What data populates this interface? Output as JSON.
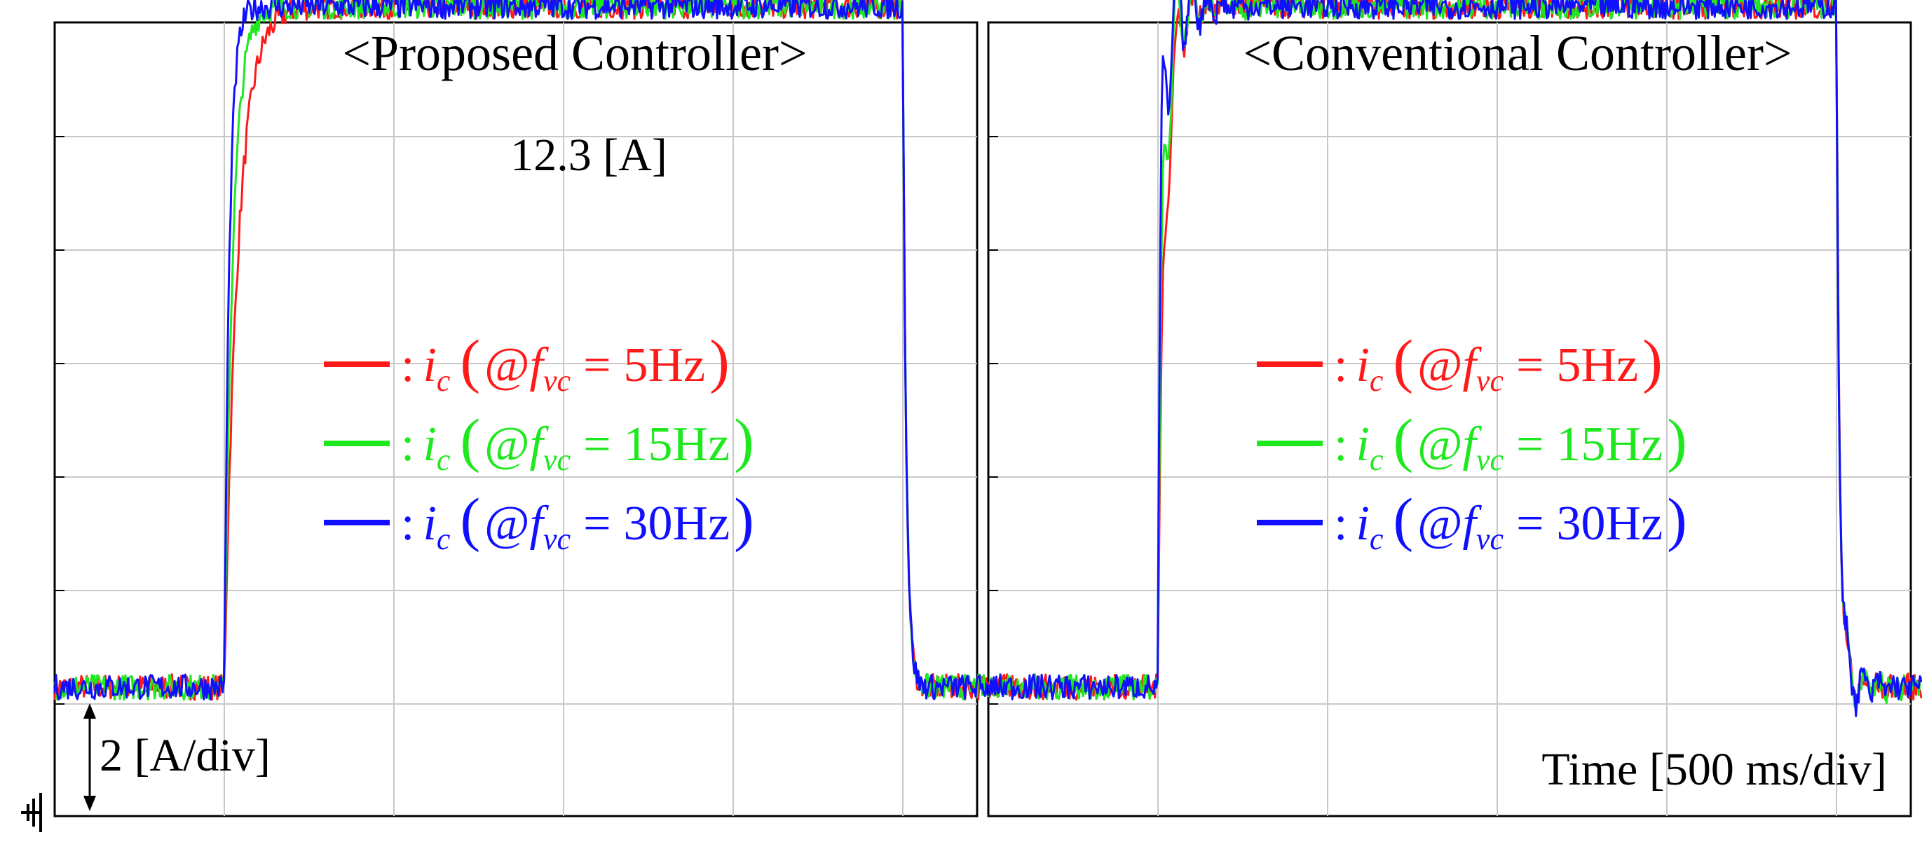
{
  "time_label": "Time [500 ms/div]",
  "scale_label": "2 [A/div]",
  "ground_icon": "ground-symbol-icon",
  "colors": {
    "f5": "#ff1a1a",
    "f15": "#1fe81f",
    "f30": "#1010ff",
    "grid": "#c8c8c8",
    "frame": "#000000"
  },
  "legend": [
    {
      "color": "#ff1a1a",
      "sym": "i",
      "sub": "c",
      "at": "@",
      "f": "f",
      "fsub": "vc",
      "eq": "=",
      "value": "5Hz"
    },
    {
      "color": "#1fe81f",
      "sym": "i",
      "sub": "c",
      "at": "@",
      "f": "f",
      "fsub": "vc",
      "eq": "=",
      "value": "15Hz"
    },
    {
      "color": "#1010ff",
      "sym": "i",
      "sub": "c",
      "at": "@",
      "f": "f",
      "fsub": "vc",
      "eq": "=",
      "value": "30Hz"
    }
  ],
  "chart_data": [
    {
      "type": "line",
      "title": "<Proposed Controller>",
      "annotation": "12.3 [A]",
      "xlabel": "",
      "ylabel": "",
      "x_unit_per_div_ms": 500,
      "y_unit_per_div_A": 2,
      "x_divs": 5.5,
      "y_divs": 7,
      "grid": true,
      "series": [
        {
          "name": "5Hz",
          "color": "#ff1a1a",
          "levels_A": [
            0.3,
            12.3,
            0.3
          ],
          "step_up_div": 1.0,
          "step_down_div": 5.0,
          "overshoot_A": 0,
          "rise_tau_div": 0.08
        },
        {
          "name": "15Hz",
          "color": "#1fe81f",
          "levels_A": [
            0.3,
            12.3,
            0.3
          ],
          "step_up_div": 1.0,
          "step_down_div": 5.0,
          "overshoot_A": 0,
          "rise_tau_div": 0.05
        },
        {
          "name": "30Hz",
          "color": "#1010ff",
          "levels_A": [
            0.3,
            12.3,
            0.3
          ],
          "step_up_div": 1.0,
          "step_down_div": 5.0,
          "overshoot_A": 0,
          "rise_tau_div": 0.03
        }
      ]
    },
    {
      "type": "line",
      "title": "<Conventional Controller>",
      "xlabel": "",
      "ylabel": "",
      "x_unit_per_div_ms": 500,
      "y_unit_per_div_A": 2,
      "x_divs": 5.5,
      "y_divs": 7,
      "grid": true,
      "series": [
        {
          "name": "5Hz",
          "color": "#ff1a1a",
          "levels_A": [
            0.3,
            12.3,
            0.3
          ],
          "step_up_div": 1.0,
          "step_down_div": 5.0,
          "overshoot_A": 1.6,
          "rise_tau_div": 0.04
        },
        {
          "name": "15Hz",
          "color": "#1fe81f",
          "levels_A": [
            0.3,
            12.3,
            0.3
          ],
          "step_up_div": 1.0,
          "step_down_div": 5.0,
          "overshoot_A": 2.2,
          "rise_tau_div": 0.03
        },
        {
          "name": "30Hz",
          "color": "#1010ff",
          "levels_A": [
            0.3,
            12.3,
            0.3
          ],
          "step_up_div": 1.0,
          "step_down_div": 5.0,
          "overshoot_A": 2.5,
          "rise_tau_div": 0.02
        }
      ]
    }
  ]
}
